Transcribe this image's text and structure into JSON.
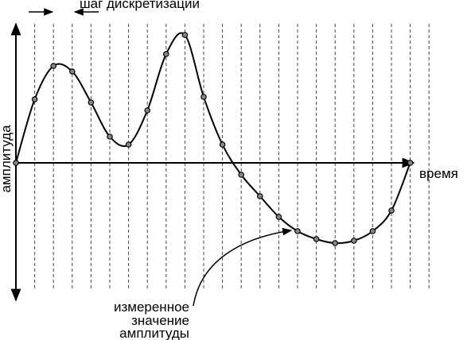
{
  "annotation_top": "шаг дискретизации",
  "x_axis_label": "время",
  "y_axis_label": "амплитуда",
  "annotation_bottom": [
    "измеренное",
    "значение",
    "амплитуды"
  ]
}
